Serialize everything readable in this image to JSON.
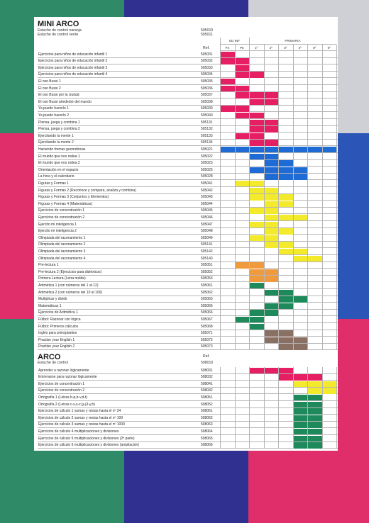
{
  "colors": {
    "pink": "#e61e63",
    "blue": "#1f6bd6",
    "yellow": "#f2ea2a",
    "orange": "#f09a3e",
    "green": "#1e8a5c",
    "brown": "#8a6f63",
    "bg_green": "#2f8a68",
    "bg_navy": "#303090",
    "bg_pink": "#e02e6a",
    "bg_blue": "#2b56b8",
    "bg_gray": "#cfcfd6"
  },
  "mini_arco": {
    "title": "MINI ARCO",
    "subtitle_lines": [
      "Estuche de control naranja",
      "Estuche de control verde"
    ],
    "subtitle_refs": [
      "505010",
      "505011"
    ],
    "ref_header": "Ref.",
    "group_headers": [
      "ED INF",
      "PRIMARIA"
    ],
    "level_headers": [
      "P4",
      "P5",
      "1º",
      "2º",
      "3º",
      "4º",
      "5º",
      "6º"
    ],
    "rows": [
      {
        "name": "Ejercicios para niños de educación infantil 1",
        "ref": "505031",
        "color": "pink",
        "cols": [
          0
        ]
      },
      {
        "name": "Ejercicios para niños de educación infantil 2",
        "ref": "505032",
        "color": "pink",
        "cols": [
          0,
          1
        ]
      },
      {
        "name": "Ejercicios para niños de educación infantil 3",
        "ref": "505033",
        "color": "pink",
        "cols": [
          1
        ]
      },
      {
        "name": "Ejercicios para niños de educación infantil 4",
        "ref": "505034",
        "color": "pink",
        "cols": [
          1,
          2
        ]
      },
      {
        "name": "El oso Bussi 1",
        "ref": "505035",
        "color": "pink",
        "cols": [
          0
        ]
      },
      {
        "name": "El oso Bussi 2",
        "ref": "505036",
        "color": "pink",
        "cols": [
          0,
          1
        ]
      },
      {
        "name": "El oso Bussi por la ciudad",
        "ref": "505037",
        "color": "pink",
        "cols": [
          1,
          2,
          3
        ]
      },
      {
        "name": "El oso Bussi alrededor del mundo",
        "ref": "505038",
        "color": "pink",
        "cols": [
          2,
          3
        ]
      },
      {
        "name": "Ya puedo hacerlo 1",
        "ref": "505039",
        "color": "pink",
        "cols": [
          0,
          1
        ]
      },
      {
        "name": "Ya puedo hacerlo 2",
        "ref": "505040",
        "color": "pink",
        "cols": [
          1,
          2
        ]
      },
      {
        "name": "Piensa, juega y combina 1",
        "ref": "505131",
        "color": "pink",
        "cols": [
          2,
          3
        ]
      },
      {
        "name": "Piensa, juega y combina 2",
        "ref": "505132",
        "color": "pink",
        "cols": [
          2,
          3
        ]
      },
      {
        "name": "Ejercitando la mente 1",
        "ref": "505133",
        "color": "pink",
        "cols": [
          1,
          2
        ]
      },
      {
        "name": "Ejercitando la mente 2",
        "ref": "505134",
        "color": "pink",
        "cols": [
          2,
          3
        ]
      },
      {
        "name": "Haciendo formas geométricas",
        "ref": "505021",
        "color": "blue",
        "cols": [
          0,
          1,
          2,
          3,
          4,
          5,
          6,
          7
        ]
      },
      {
        "name": "El mundo que nos rodea 1",
        "ref": "505022",
        "color": "blue",
        "cols": [
          2,
          3
        ]
      },
      {
        "name": "El mundo que nos rodea 2",
        "ref": "505023",
        "color": "blue",
        "cols": [
          3,
          4
        ]
      },
      {
        "name": "Orientación en el espacio",
        "ref": "505025",
        "color": "blue",
        "cols": [
          2,
          3,
          4,
          5
        ]
      },
      {
        "name": "La hora y el calendario",
        "ref": "505028",
        "color": "blue",
        "cols": [
          3,
          4,
          5
        ]
      },
      {
        "name": "Figuras y Formas 1",
        "ref": "505041",
        "color": "yellow",
        "cols": [
          1,
          2
        ]
      },
      {
        "name": "Figuras y Formas 2 (Reconoce y compara, analiza y combina)",
        "ref": "505042",
        "color": "yellow",
        "cols": [
          2,
          3
        ]
      },
      {
        "name": "Figuras y Formas 3 (Conjuntos y Elementos)",
        "ref": "505043",
        "color": "yellow",
        "cols": [
          2,
          3,
          4
        ]
      },
      {
        "name": "Figuras y Formas 4 (Matemáticas)",
        "ref": "505044",
        "color": "yellow",
        "cols": [
          3,
          4
        ]
      },
      {
        "name": "Ejercicios de concentración 1",
        "ref": "505045",
        "color": "yellow",
        "cols": [
          2,
          3
        ]
      },
      {
        "name": "Ejercicios de concentración 2",
        "ref": "505046",
        "color": "yellow",
        "cols": [
          3,
          4,
          5
        ]
      },
      {
        "name": "Ejercito mi inteligencia 1",
        "ref": "505047",
        "color": "yellow",
        "cols": [
          2,
          3
        ]
      },
      {
        "name": "Ejercito mi inteligencia 2",
        "ref": "505048",
        "color": "yellow",
        "cols": [
          3,
          4
        ]
      },
      {
        "name": "Olimpiada del razonamiento 1",
        "ref": "505049",
        "color": "yellow",
        "cols": [
          2,
          3
        ]
      },
      {
        "name": "Olimpiada del razonamiento 2",
        "ref": "505141",
        "color": "yellow",
        "cols": [
          3,
          4
        ]
      },
      {
        "name": "Olimpiada del razonamiento 3",
        "ref": "505142",
        "color": "yellow",
        "cols": [
          4,
          5
        ]
      },
      {
        "name": "Olimpiada del razonamiento 4",
        "ref": "505143",
        "color": "yellow",
        "cols": [
          5,
          6
        ]
      },
      {
        "name": "Pre-lectura 1",
        "ref": "505051",
        "color": "orange",
        "cols": [
          1,
          2
        ]
      },
      {
        "name": "Pre-lectura 2 (Ejercicios para disléxicos)",
        "ref": "505052",
        "color": "orange",
        "cols": [
          2,
          3
        ]
      },
      {
        "name": "Primera Lectura (Letra molde)",
        "ref": "505053",
        "color": "orange",
        "cols": [
          2,
          3
        ]
      },
      {
        "name": "Aritmética 1 (con números del 1 al 12)",
        "ref": "505061",
        "color": "green",
        "cols": [
          2
        ]
      },
      {
        "name": "Aritmética 2 (con números del 10 al 100)",
        "ref": "505062",
        "color": "green",
        "cols": [
          3,
          4
        ]
      },
      {
        "name": "Multiplicar y dividir",
        "ref": "505063",
        "color": "green",
        "cols": [
          4,
          5
        ]
      },
      {
        "name": "Matemáticas 1",
        "ref": "505065",
        "color": "green",
        "cols": [
          3,
          4
        ]
      },
      {
        "name": "Ejercicios de Aritmética 1",
        "ref": "505066",
        "color": "green",
        "cols": [
          2,
          3
        ]
      },
      {
        "name": "Fútbol: Razonar con lógica",
        "ref": "505067",
        "color": "green",
        "cols": [
          1,
          2
        ]
      },
      {
        "name": "Fútbol: Primeros cálculos",
        "ref": "505068",
        "color": "green",
        "cols": [
          2
        ]
      },
      {
        "name": "Inglés para principiantes",
        "ref": "505071",
        "color": "brown",
        "cols": [
          3,
          4
        ]
      },
      {
        "name": "Practise your English 1",
        "ref": "505072",
        "color": "brown",
        "cols": [
          3,
          4,
          5
        ]
      },
      {
        "name": "Practise your English 2",
        "ref": "505073",
        "color": "brown",
        "cols": [
          4,
          5
        ]
      }
    ]
  },
  "arco": {
    "title": "ARCO",
    "subtitle_lines": [
      "Estuche de control"
    ],
    "ref_header": "Ref.",
    "subtitle_refs": [
      "508010"
    ],
    "rows": [
      {
        "name": "Aprender a razonar lógicamente",
        "ref": "508031",
        "color": "pink",
        "cols": [
          2,
          3,
          4
        ]
      },
      {
        "name": "Entrenarse para razonar lógicamente",
        "ref": "508032",
        "color": "pink",
        "cols": [
          4,
          5,
          6
        ]
      },
      {
        "name": "Ejercicios de concentración 1",
        "ref": "508041",
        "color": "yellow",
        "cols": [
          5,
          6,
          7
        ]
      },
      {
        "name": "Ejercicios de concentración 2",
        "ref": "508042",
        "color": "yellow",
        "cols": [
          6,
          7
        ]
      },
      {
        "name": "Ortografía 1 (Letras b-p,b-v,d-t)",
        "ref": "508051",
        "color": "green",
        "cols": [
          5,
          6
        ]
      },
      {
        "name": "Ortografía 2 (Letras c-s,s-z,g-j,ll-y,h)",
        "ref": "508052",
        "color": "green",
        "cols": [
          5,
          6
        ]
      },
      {
        "name": "Ejercicios de cálculo 1 sumas y restas hasta el nº 24",
        "ref": "508061",
        "color": "green",
        "cols": [
          5,
          6
        ]
      },
      {
        "name": "Ejercicios de cálculo 2 sumas y restas hasta el nº 100",
        "ref": "508062",
        "color": "green",
        "cols": [
          5,
          6
        ]
      },
      {
        "name": "Ejercicios de cálculo 3 sumas y restas hasta el nº 1000",
        "ref": "508063",
        "color": "green",
        "cols": [
          5,
          6
        ]
      },
      {
        "name": "Ejercicios de cálculo 4 multiplicaciones y divisiones",
        "ref": "508064",
        "color": "green",
        "cols": [
          5,
          6
        ]
      },
      {
        "name": "Ejercicios de cálculo 5 multiplicaciones y divisiones (2ª parte)",
        "ref": "508065",
        "color": "green",
        "cols": [
          5,
          6
        ]
      },
      {
        "name": "Ejercicios de cálculo 6 multiplicaciones y divisiones (ampliación)",
        "ref": "508066",
        "color": "green",
        "cols": [
          5,
          6
        ]
      }
    ]
  }
}
